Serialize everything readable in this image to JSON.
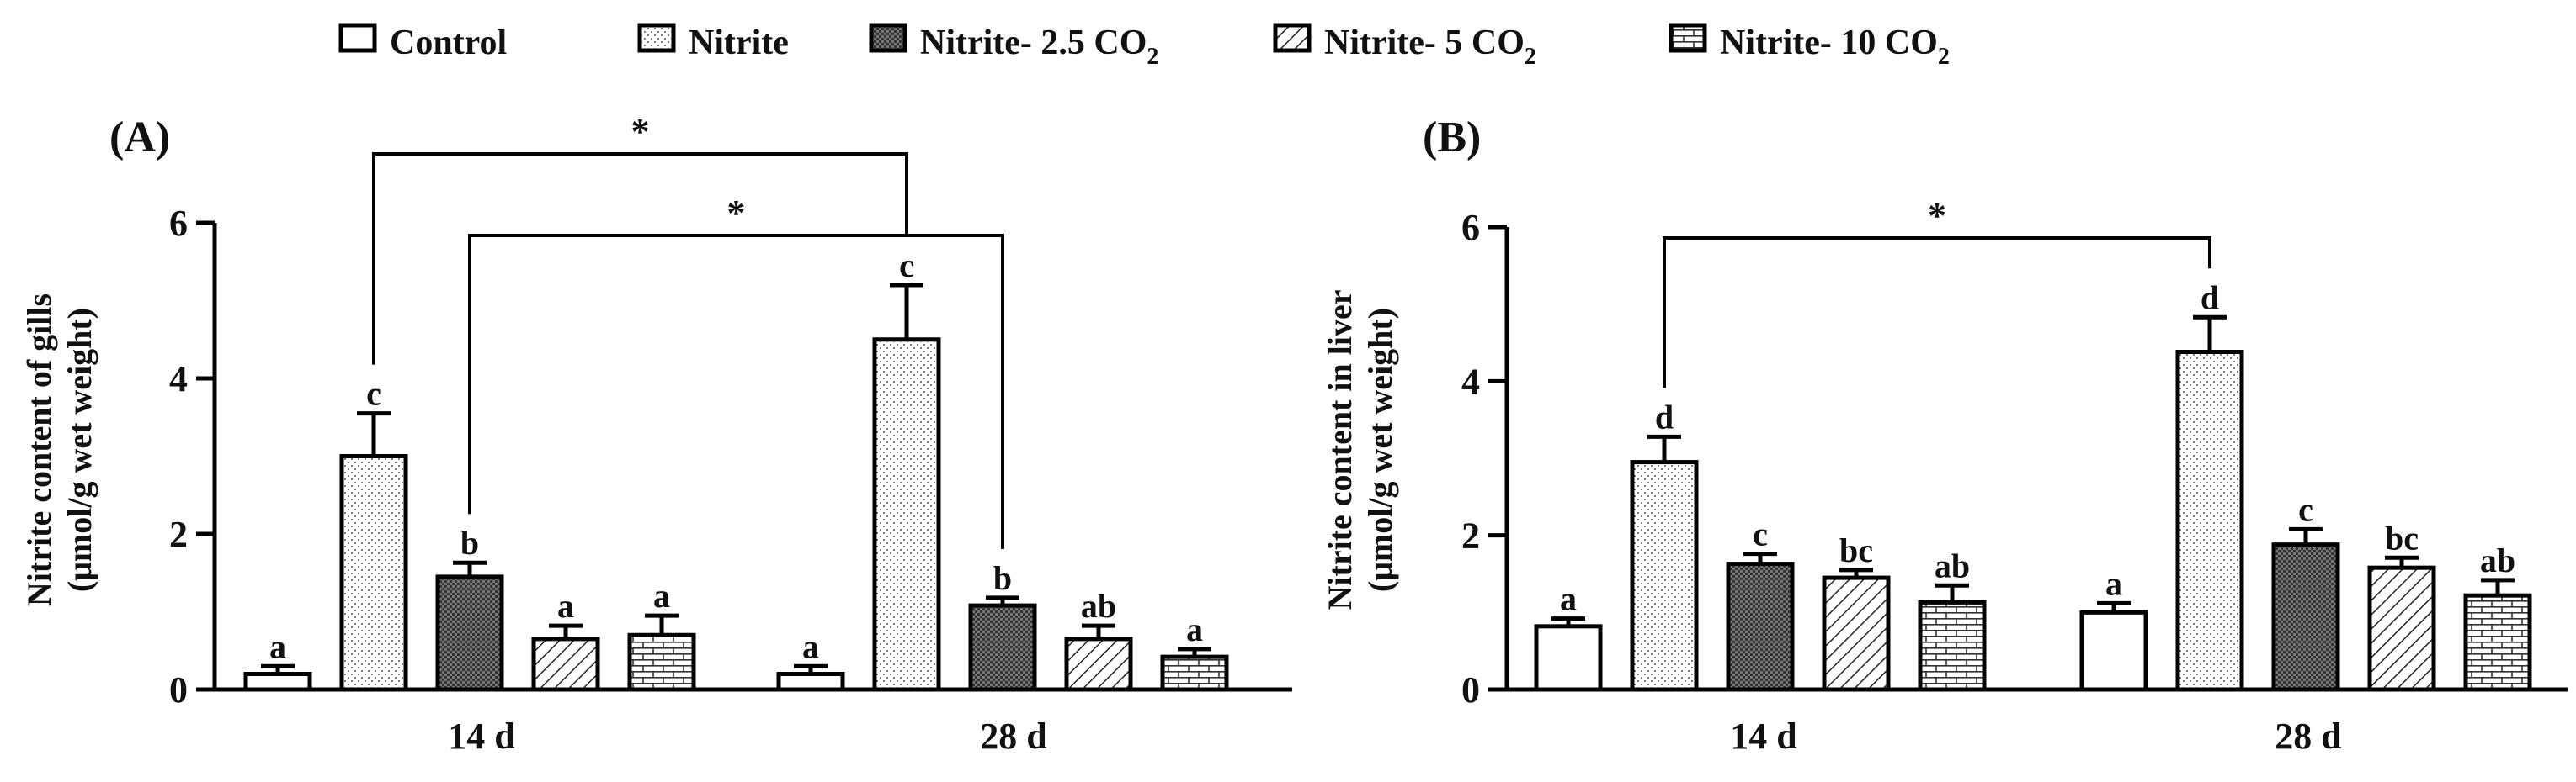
{
  "legend": {
    "items": [
      {
        "name": "Control",
        "sub": "",
        "pattern": "control"
      },
      {
        "name": "Nitrite",
        "sub": "",
        "pattern": "nitrite"
      },
      {
        "name": "Nitrite- 2.5 CO",
        "sub": "2",
        "pattern": "n25"
      },
      {
        "name": "Nitrite- 5 CO",
        "sub": "2",
        "pattern": "n5"
      },
      {
        "name": "Nitrite- 10 CO",
        "sub": "2",
        "pattern": "n10"
      }
    ]
  },
  "chart_data": [
    {
      "type": "bar",
      "panel_label": "(A)",
      "ylabel_line1": "Nitrite content of gills",
      "ylabel_line2": "(μmol/g wet weight)",
      "ylim": [
        0,
        6
      ],
      "yticks": [
        "0",
        "2",
        "4",
        "6"
      ],
      "categories": [
        "14 d",
        "28 d"
      ],
      "series": [
        {
          "name": "Control",
          "values": [
            0.2,
            0.2
          ],
          "errors": [
            0.1,
            0.1
          ],
          "letters": [
            "a",
            "a"
          ]
        },
        {
          "name": "Nitrite",
          "values": [
            3.0,
            4.5
          ],
          "errors": [
            0.55,
            0.7
          ],
          "letters": [
            "c",
            "c"
          ]
        },
        {
          "name": "Nitrite- 2.5 CO2",
          "values": [
            1.45,
            1.08
          ],
          "errors": [
            0.18,
            0.1
          ],
          "letters": [
            "b",
            "b"
          ]
        },
        {
          "name": "Nitrite- 5 CO2",
          "values": [
            0.65,
            0.65
          ],
          "errors": [
            0.17,
            0.17
          ],
          "letters": [
            "a",
            "ab"
          ]
        },
        {
          "name": "Nitrite- 10 CO2",
          "values": [
            0.7,
            0.42
          ],
          "errors": [
            0.25,
            0.1
          ],
          "letters": [
            "a",
            "a"
          ]
        }
      ],
      "significance": [
        {
          "from": [
            0,
            1
          ],
          "to": [
            1,
            1
          ],
          "label": "*"
        },
        {
          "from": [
            0,
            2
          ],
          "to": [
            1,
            2
          ],
          "label": "*"
        }
      ]
    },
    {
      "type": "bar",
      "panel_label": "(B)",
      "ylabel_line1": "Nitrite content in liver",
      "ylabel_line2": "(μmol/g wet weight)",
      "ylim": [
        0,
        6
      ],
      "yticks": [
        "0",
        "2",
        "4",
        "6"
      ],
      "categories": [
        "14 d",
        "28 d"
      ],
      "series": [
        {
          "name": "Control",
          "values": [
            0.82,
            1.0
          ],
          "errors": [
            0.1,
            0.12
          ],
          "letters": [
            "a",
            "a"
          ]
        },
        {
          "name": "Nitrite",
          "values": [
            2.95,
            4.38
          ],
          "errors": [
            0.33,
            0.45
          ],
          "letters": [
            "d",
            "d"
          ]
        },
        {
          "name": "Nitrite- 2.5 CO2",
          "values": [
            1.63,
            1.88
          ],
          "errors": [
            0.13,
            0.2
          ],
          "letters": [
            "c",
            "c"
          ]
        },
        {
          "name": "Nitrite- 5 CO2",
          "values": [
            1.45,
            1.58
          ],
          "errors": [
            0.1,
            0.13
          ],
          "letters": [
            "bc",
            "bc"
          ]
        },
        {
          "name": "Nitrite- 10 CO2",
          "values": [
            1.13,
            1.22
          ],
          "errors": [
            0.22,
            0.2
          ],
          "letters": [
            "ab",
            "ab"
          ]
        }
      ],
      "significance": [
        {
          "from": [
            0,
            1
          ],
          "to": [
            1,
            1
          ],
          "label": "*"
        }
      ]
    }
  ]
}
